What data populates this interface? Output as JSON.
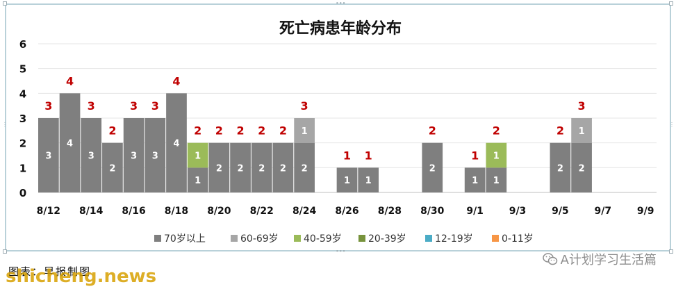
{
  "chart_data": {
    "type": "bar",
    "stacked": true,
    "title": "死亡病患年龄分布",
    "categories": [
      "8/12",
      "8/13",
      "8/14",
      "8/15",
      "8/16",
      "8/17",
      "8/18",
      "8/19",
      "8/20",
      "8/21",
      "8/22",
      "8/23",
      "8/24",
      "8/25",
      "8/26",
      "8/27",
      "8/28",
      "8/29",
      "8/30",
      "8/31",
      "9/1",
      "9/2",
      "9/3",
      "9/4",
      "9/5",
      "9/6",
      "9/7",
      "9/8",
      "9/9"
    ],
    "x_tick_labels": [
      "8/12",
      "8/14",
      "8/16",
      "8/18",
      "8/20",
      "8/22",
      "8/24",
      "8/26",
      "8/28",
      "8/30",
      "9/1",
      "9/3",
      "9/5",
      "9/7",
      "9/9"
    ],
    "ylim": [
      0,
      6
    ],
    "y_ticks": [
      "0",
      "1",
      "2",
      "3",
      "4",
      "5",
      "6"
    ],
    "grid": true,
    "legend_position": "bottom",
    "series": [
      {
        "name": "70岁以上",
        "color": "#7f7f7f",
        "values": [
          3,
          4,
          3,
          2,
          3,
          3,
          4,
          1,
          2,
          2,
          2,
          2,
          2,
          0,
          1,
          1,
          0,
          0,
          2,
          0,
          1,
          1,
          0,
          0,
          2,
          2,
          0,
          0,
          0
        ]
      },
      {
        "name": "60-69岁",
        "color": "#a6a6a6",
        "values": [
          0,
          0,
          0,
          0,
          0,
          0,
          0,
          0,
          0,
          0,
          0,
          0,
          1,
          0,
          0,
          0,
          0,
          0,
          0,
          0,
          0,
          0,
          0,
          0,
          0,
          1,
          0,
          0,
          0
        ]
      },
      {
        "name": "40-59岁",
        "color": "#9bbb59",
        "values": [
          0,
          0,
          0,
          0,
          0,
          0,
          0,
          1,
          0,
          0,
          0,
          0,
          0,
          0,
          0,
          0,
          0,
          0,
          0,
          0,
          0,
          1,
          0,
          0,
          0,
          0,
          0,
          0,
          0
        ]
      },
      {
        "name": "20-39岁",
        "color": "#77933c",
        "values": [
          0,
          0,
          0,
          0,
          0,
          0,
          0,
          0,
          0,
          0,
          0,
          0,
          0,
          0,
          0,
          0,
          0,
          0,
          0,
          0,
          0,
          0,
          0,
          0,
          0,
          0,
          0,
          0,
          0
        ]
      },
      {
        "name": "12-19岁",
        "color": "#4bacc6",
        "values": [
          0,
          0,
          0,
          0,
          0,
          0,
          0,
          0,
          0,
          0,
          0,
          0,
          0,
          0,
          0,
          0,
          0,
          0,
          0,
          0,
          0,
          0,
          0,
          0,
          0,
          0,
          0,
          0,
          0
        ]
      },
      {
        "name": "0-11岁",
        "color": "#f79646",
        "values": [
          0,
          0,
          0,
          0,
          0,
          0,
          0,
          0,
          0,
          0,
          0,
          0,
          0,
          0,
          0,
          0,
          0,
          0,
          0,
          0,
          0,
          0,
          0,
          0,
          0,
          0,
          0,
          0,
          0
        ]
      }
    ],
    "totals": [
      3,
      4,
      3,
      2,
      3,
      3,
      4,
      2,
      2,
      2,
      2,
      2,
      3,
      0,
      1,
      1,
      0,
      0,
      2,
      0,
      1,
      2,
      0,
      0,
      2,
      3,
      0,
      0,
      0
    ],
    "total_label_color": "#c00000"
  },
  "caption": "图表：早报制图",
  "watermark": "shicheng.news",
  "wechat": {
    "icon": "wechat-icon",
    "label": "A计划学习生活篇"
  }
}
